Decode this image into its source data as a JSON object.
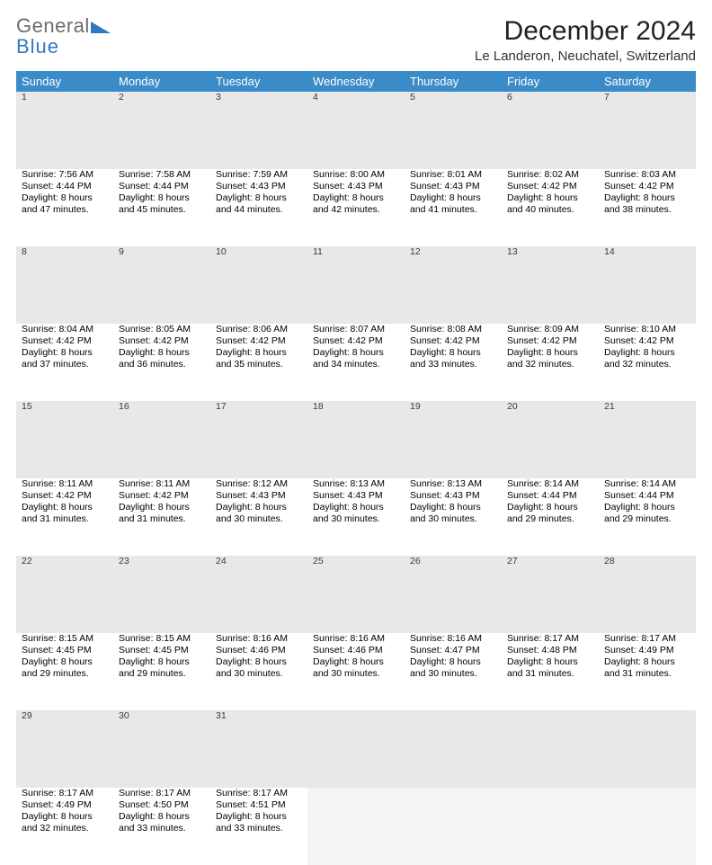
{
  "logo": {
    "word1": "General",
    "word2": "Blue",
    "word1_color": "#6b6b6b",
    "word2_color": "#2f7ac0",
    "triangle_color": "#2f7ac0"
  },
  "title": "December 2024",
  "location": "Le Landeron, Neuchatel, Switzerland",
  "theme": {
    "header_bg": "#3b8bc9",
    "header_fg": "#ffffff",
    "daynum_bg": "#e8e8e8",
    "sep_color": "#2a6aa5",
    "blank_bg": "#f4f4f4"
  },
  "day_headers": [
    "Sunday",
    "Monday",
    "Tuesday",
    "Wednesday",
    "Thursday",
    "Friday",
    "Saturday"
  ],
  "weeks": [
    [
      {
        "n": "1",
        "sr": "7:56 AM",
        "ss": "4:44 PM",
        "dl": "8 hours and 47 minutes."
      },
      {
        "n": "2",
        "sr": "7:58 AM",
        "ss": "4:44 PM",
        "dl": "8 hours and 45 minutes."
      },
      {
        "n": "3",
        "sr": "7:59 AM",
        "ss": "4:43 PM",
        "dl": "8 hours and 44 minutes."
      },
      {
        "n": "4",
        "sr": "8:00 AM",
        "ss": "4:43 PM",
        "dl": "8 hours and 42 minutes."
      },
      {
        "n": "5",
        "sr": "8:01 AM",
        "ss": "4:43 PM",
        "dl": "8 hours and 41 minutes."
      },
      {
        "n": "6",
        "sr": "8:02 AM",
        "ss": "4:42 PM",
        "dl": "8 hours and 40 minutes."
      },
      {
        "n": "7",
        "sr": "8:03 AM",
        "ss": "4:42 PM",
        "dl": "8 hours and 38 minutes."
      }
    ],
    [
      {
        "n": "8",
        "sr": "8:04 AM",
        "ss": "4:42 PM",
        "dl": "8 hours and 37 minutes."
      },
      {
        "n": "9",
        "sr": "8:05 AM",
        "ss": "4:42 PM",
        "dl": "8 hours and 36 minutes."
      },
      {
        "n": "10",
        "sr": "8:06 AM",
        "ss": "4:42 PM",
        "dl": "8 hours and 35 minutes."
      },
      {
        "n": "11",
        "sr": "8:07 AM",
        "ss": "4:42 PM",
        "dl": "8 hours and 34 minutes."
      },
      {
        "n": "12",
        "sr": "8:08 AM",
        "ss": "4:42 PM",
        "dl": "8 hours and 33 minutes."
      },
      {
        "n": "13",
        "sr": "8:09 AM",
        "ss": "4:42 PM",
        "dl": "8 hours and 32 minutes."
      },
      {
        "n": "14",
        "sr": "8:10 AM",
        "ss": "4:42 PM",
        "dl": "8 hours and 32 minutes."
      }
    ],
    [
      {
        "n": "15",
        "sr": "8:11 AM",
        "ss": "4:42 PM",
        "dl": "8 hours and 31 minutes."
      },
      {
        "n": "16",
        "sr": "8:11 AM",
        "ss": "4:42 PM",
        "dl": "8 hours and 31 minutes."
      },
      {
        "n": "17",
        "sr": "8:12 AM",
        "ss": "4:43 PM",
        "dl": "8 hours and 30 minutes."
      },
      {
        "n": "18",
        "sr": "8:13 AM",
        "ss": "4:43 PM",
        "dl": "8 hours and 30 minutes."
      },
      {
        "n": "19",
        "sr": "8:13 AM",
        "ss": "4:43 PM",
        "dl": "8 hours and 30 minutes."
      },
      {
        "n": "20",
        "sr": "8:14 AM",
        "ss": "4:44 PM",
        "dl": "8 hours and 29 minutes."
      },
      {
        "n": "21",
        "sr": "8:14 AM",
        "ss": "4:44 PM",
        "dl": "8 hours and 29 minutes."
      }
    ],
    [
      {
        "n": "22",
        "sr": "8:15 AM",
        "ss": "4:45 PM",
        "dl": "8 hours and 29 minutes."
      },
      {
        "n": "23",
        "sr": "8:15 AM",
        "ss": "4:45 PM",
        "dl": "8 hours and 29 minutes."
      },
      {
        "n": "24",
        "sr": "8:16 AM",
        "ss": "4:46 PM",
        "dl": "8 hours and 30 minutes."
      },
      {
        "n": "25",
        "sr": "8:16 AM",
        "ss": "4:46 PM",
        "dl": "8 hours and 30 minutes."
      },
      {
        "n": "26",
        "sr": "8:16 AM",
        "ss": "4:47 PM",
        "dl": "8 hours and 30 minutes."
      },
      {
        "n": "27",
        "sr": "8:17 AM",
        "ss": "4:48 PM",
        "dl": "8 hours and 31 minutes."
      },
      {
        "n": "28",
        "sr": "8:17 AM",
        "ss": "4:49 PM",
        "dl": "8 hours and 31 minutes."
      }
    ],
    [
      {
        "n": "29",
        "sr": "8:17 AM",
        "ss": "4:49 PM",
        "dl": "8 hours and 32 minutes."
      },
      {
        "n": "30",
        "sr": "8:17 AM",
        "ss": "4:50 PM",
        "dl": "8 hours and 33 minutes."
      },
      {
        "n": "31",
        "sr": "8:17 AM",
        "ss": "4:51 PM",
        "dl": "8 hours and 33 minutes."
      },
      null,
      null,
      null,
      null
    ]
  ],
  "labels": {
    "sunrise": "Sunrise: ",
    "sunset": "Sunset: ",
    "daylight": "Daylight: "
  }
}
